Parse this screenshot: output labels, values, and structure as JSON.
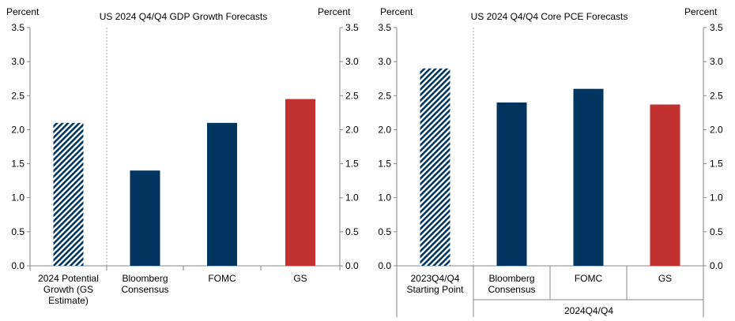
{
  "chart_data": [
    {
      "type": "bar",
      "title": "US 2024  Q4/Q4  GDP Growth  Forecasts",
      "ylabel_left": "Percent",
      "ylabel_right": "Percent",
      "ylim": [
        0,
        3.5
      ],
      "yticks": [
        "0.0",
        "0.5",
        "1.0",
        "1.5",
        "2.0",
        "2.5",
        "3.0",
        "3.5"
      ],
      "categories": [
        [
          "2024 Potential",
          "Growth (GS",
          "Estimate)"
        ],
        [
          "Bloomberg",
          "Consensus"
        ],
        [
          "FOMC"
        ],
        [
          "GS"
        ]
      ],
      "values": [
        2.1,
        1.4,
        2.1,
        2.45
      ],
      "bar_styles": [
        "hatched",
        "navy",
        "navy",
        "red"
      ],
      "group_label": ""
    },
    {
      "type": "bar",
      "title": "US 2024  Q4/Q4 Core PCE Forecasts",
      "ylabel_left": "Percent",
      "ylabel_right": "Percent",
      "ylim": [
        0,
        3.5
      ],
      "yticks": [
        "0.0",
        "0.5",
        "1.0",
        "1.5",
        "2.0",
        "2.5",
        "3.0",
        "3.5"
      ],
      "categories": [
        [
          "2023Q4/Q4",
          "Starting Point"
        ],
        [
          "Bloomberg",
          "Consensus"
        ],
        [
          "FOMC"
        ],
        [
          "GS"
        ]
      ],
      "values": [
        2.9,
        2.4,
        2.6,
        2.37
      ],
      "bar_styles": [
        "hatched",
        "navy",
        "navy",
        "red"
      ],
      "group_label": "2024Q4/Q4"
    }
  ],
  "colors": {
    "navy": "#003560",
    "red": "#c0312f",
    "axis": "#888888",
    "divider": "#aaaaaa"
  }
}
